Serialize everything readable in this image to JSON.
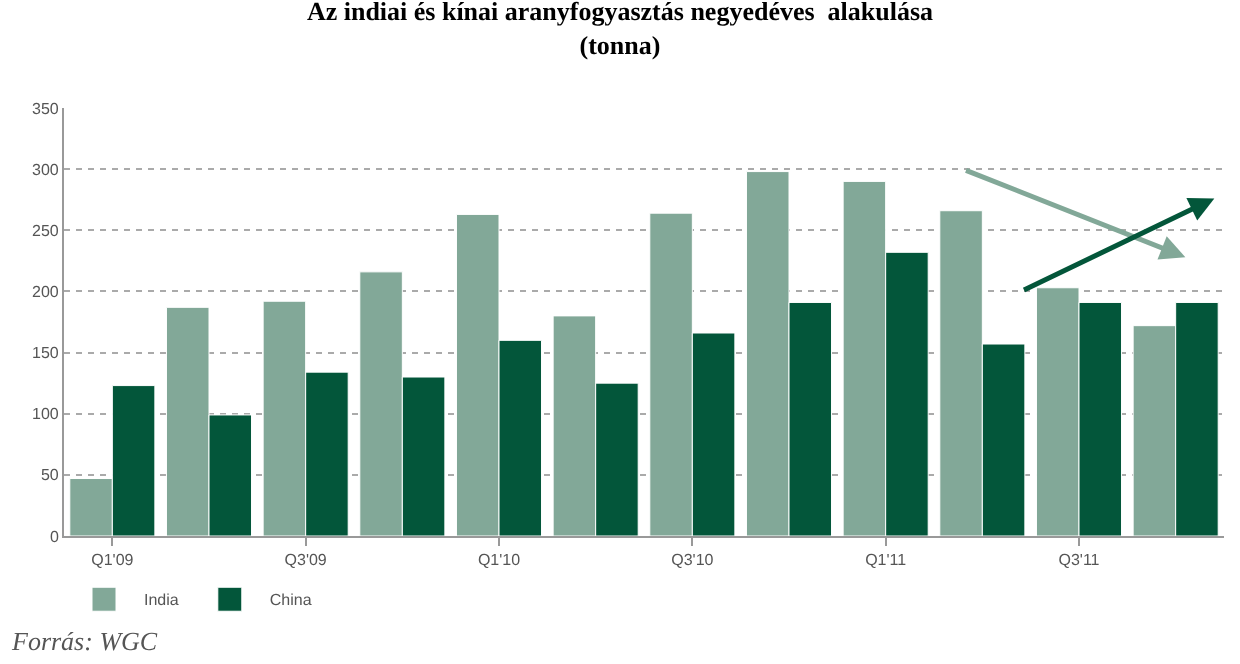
{
  "chart_data": {
    "type": "bar",
    "title": "Az indiai és kínai aranyfogyasztás negyedéves  alakulása\n(tonna)",
    "categories": [
      "Q1'09",
      null,
      "Q3'09",
      null,
      "Q1'10",
      null,
      "Q3'10",
      null,
      "Q1'11",
      null,
      "Q3'11",
      null
    ],
    "series": [
      {
        "name": "India",
        "color": "#82a898",
        "values": [
          47,
          187,
          192,
          216,
          263,
          180,
          264,
          298,
          290,
          266,
          203,
          172
        ]
      },
      {
        "name": "China",
        "color": "#03563a",
        "values": [
          123,
          99,
          134,
          130,
          160,
          125,
          166,
          191,
          232,
          157,
          191,
          191
        ]
      }
    ],
    "ylim": [
      0,
      350
    ],
    "yticks": [
      0,
      50,
      100,
      150,
      200,
      250,
      300,
      350
    ],
    "grid": "y",
    "legend": "bottom left",
    "annotations": [
      "Forrás: WGC"
    ]
  }
}
